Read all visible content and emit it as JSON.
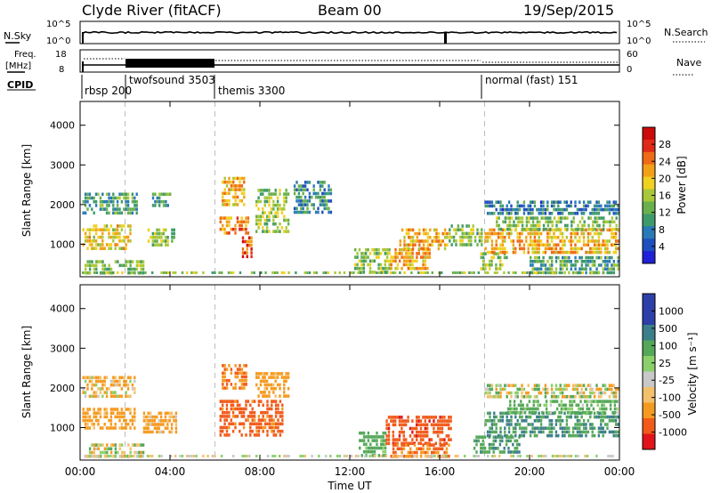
{
  "header": {
    "station": "Clyde River (fitACF)",
    "beam": "Beam 00",
    "date": "19/Sep/2015"
  },
  "panels": {
    "nsky": {
      "left_label": "N.Sky",
      "left_ticks": [
        "10^5",
        "10^0"
      ],
      "right_ticks": [
        "10^5",
        "10^0"
      ],
      "right_label": "N.Search"
    },
    "freq": {
      "left_label_1": "Freq.",
      "left_label_2": "[MHz]",
      "left_ticks": [
        "18",
        "8"
      ],
      "right_ticks": [
        "60",
        "0"
      ],
      "right_label": "Nave"
    },
    "cpid": {
      "label": "CPID",
      "modes": [
        {
          "name": "rbsp",
          "id": "200"
        },
        {
          "name": "twofsound",
          "id": "3503"
        },
        {
          "name": "themis",
          "id": "3300"
        },
        {
          "name": "normal (fast)",
          "id": "151"
        }
      ]
    },
    "power": {
      "ylabel": "Slant Range [km]",
      "colorbar_label": "Power [dB]",
      "colorbar_ticks": [
        "28",
        "24",
        "20",
        "16",
        "12",
        "8",
        "4"
      ]
    },
    "velocity": {
      "ylabel": "Slant Range [km]",
      "colorbar_label": "Velocity [m s⁻¹]",
      "colorbar_ticks": [
        "1000",
        "500",
        "100",
        "25",
        "-25",
        "-100",
        "-500",
        "-1000"
      ]
    }
  },
  "chart_data": [
    {
      "type": "heatmap",
      "name": "power",
      "xlabel": "Time UT",
      "ylabel": "Slant Range [km]",
      "x_ticks": [
        "00:00",
        "04:00",
        "08:00",
        "12:00",
        "16:00",
        "20:00",
        "00:00"
      ],
      "y_ticks": [
        1000,
        2000,
        3000,
        4000
      ],
      "xlim": [
        0,
        24
      ],
      "ylim": [
        180,
        4600
      ],
      "colorbar": {
        "label": "Power [dB]",
        "range": [
          0,
          30
        ],
        "ticks": [
          4,
          8,
          12,
          16,
          20,
          24,
          28
        ]
      },
      "mode_boundaries_hours": [
        2.0,
        6.0,
        18.0
      ],
      "regions": [
        {
          "t0": 0.1,
          "t1": 2.2,
          "r0": 900,
          "r1": 1500,
          "level": 18
        },
        {
          "t0": 0.1,
          "t1": 2.5,
          "r0": 1800,
          "r1": 2300,
          "level": 10
        },
        {
          "t0": 0.2,
          "t1": 2.8,
          "r0": 250,
          "r1": 600,
          "level": 12
        },
        {
          "t0": 3.0,
          "t1": 4.2,
          "r0": 1000,
          "r1": 1400,
          "level": 14
        },
        {
          "t0": 3.2,
          "t1": 4.0,
          "r0": 2000,
          "r1": 2300,
          "level": 10
        },
        {
          "t0": 6.2,
          "t1": 7.5,
          "r0": 1300,
          "r1": 1700,
          "level": 22
        },
        {
          "t0": 6.3,
          "t1": 7.3,
          "r0": 2000,
          "r1": 2700,
          "level": 20
        },
        {
          "t0": 7.2,
          "t1": 7.6,
          "r0": 700,
          "r1": 1200,
          "level": 26
        },
        {
          "t0": 7.8,
          "t1": 9.3,
          "r0": 1300,
          "r1": 2400,
          "level": 14
        },
        {
          "t0": 9.5,
          "t1": 11.2,
          "r0": 1800,
          "r1": 2600,
          "level": 8
        },
        {
          "t0": 12.2,
          "t1": 13.8,
          "r0": 300,
          "r1": 900,
          "level": 14
        },
        {
          "t0": 13.8,
          "t1": 15.6,
          "r0": 400,
          "r1": 900,
          "level": 20
        },
        {
          "t0": 14.2,
          "t1": 16.3,
          "r0": 900,
          "r1": 1400,
          "level": 20
        },
        {
          "t0": 16.4,
          "t1": 17.9,
          "r0": 1000,
          "r1": 1500,
          "level": 12
        },
        {
          "t0": 17.8,
          "t1": 19.0,
          "r0": 400,
          "r1": 800,
          "level": 14
        },
        {
          "t0": 18.0,
          "t1": 23.9,
          "r0": 800,
          "r1": 1400,
          "level": 20
        },
        {
          "t0": 18.0,
          "t1": 23.9,
          "r0": 1800,
          "r1": 2100,
          "level": 6
        },
        {
          "t0": 18.5,
          "t1": 23.9,
          "r0": 1400,
          "r1": 1700,
          "level": 13
        },
        {
          "t0": 20.0,
          "t1": 23.9,
          "r0": 300,
          "r1": 700,
          "level": 10
        }
      ]
    },
    {
      "type": "heatmap",
      "name": "velocity",
      "xlabel": "Time UT",
      "ylabel": "Slant Range [km]",
      "x_ticks": [
        "00:00",
        "04:00",
        "08:00",
        "12:00",
        "16:00",
        "20:00",
        "00:00"
      ],
      "y_ticks": [
        1000,
        2000,
        3000,
        4000
      ],
      "xlim": [
        0,
        24
      ],
      "ylim": [
        180,
        4600
      ],
      "colorbar": {
        "label": "Velocity [m s⁻¹]",
        "range": [
          -1000,
          1000
        ],
        "ticks": [
          1000,
          500,
          100,
          25,
          -25,
          -100,
          -500,
          -1000
        ]
      },
      "mode_boundaries_hours": [
        2.0,
        6.0,
        18.0
      ],
      "regions": [
        {
          "t0": 0.1,
          "t1": 2.4,
          "r0": 1000,
          "r1": 1500,
          "level": -150
        },
        {
          "t0": 0.1,
          "t1": 2.4,
          "r0": 1800,
          "r1": 2300,
          "level": -80
        },
        {
          "t0": 0.2,
          "t1": 2.8,
          "r0": 250,
          "r1": 600,
          "level": 0
        },
        {
          "t0": 2.8,
          "t1": 4.3,
          "r0": 900,
          "r1": 1400,
          "level": -120
        },
        {
          "t0": 6.2,
          "t1": 9.0,
          "r0": 800,
          "r1": 1700,
          "level": -400
        },
        {
          "t0": 6.3,
          "t1": 7.4,
          "r0": 2000,
          "r1": 2600,
          "level": -300
        },
        {
          "t0": 7.8,
          "t1": 9.3,
          "r0": 1800,
          "r1": 2400,
          "level": -150
        },
        {
          "t0": 12.4,
          "t1": 13.6,
          "r0": 300,
          "r1": 900,
          "level": 150
        },
        {
          "t0": 13.6,
          "t1": 16.5,
          "r0": 600,
          "r1": 1300,
          "level": -600
        },
        {
          "t0": 13.8,
          "t1": 16.4,
          "r0": 250,
          "r1": 600,
          "level": -300
        },
        {
          "t0": 17.5,
          "t1": 19.5,
          "r0": 400,
          "r1": 800,
          "level": 250
        },
        {
          "t0": 18.0,
          "t1": 23.9,
          "r0": 800,
          "r1": 1400,
          "level": 300
        },
        {
          "t0": 18.0,
          "t1": 23.9,
          "r0": 1800,
          "r1": 2100,
          "level": 0
        },
        {
          "t0": 19.0,
          "t1": 23.9,
          "r0": 1400,
          "r1": 1700,
          "level": 120
        }
      ]
    }
  ]
}
